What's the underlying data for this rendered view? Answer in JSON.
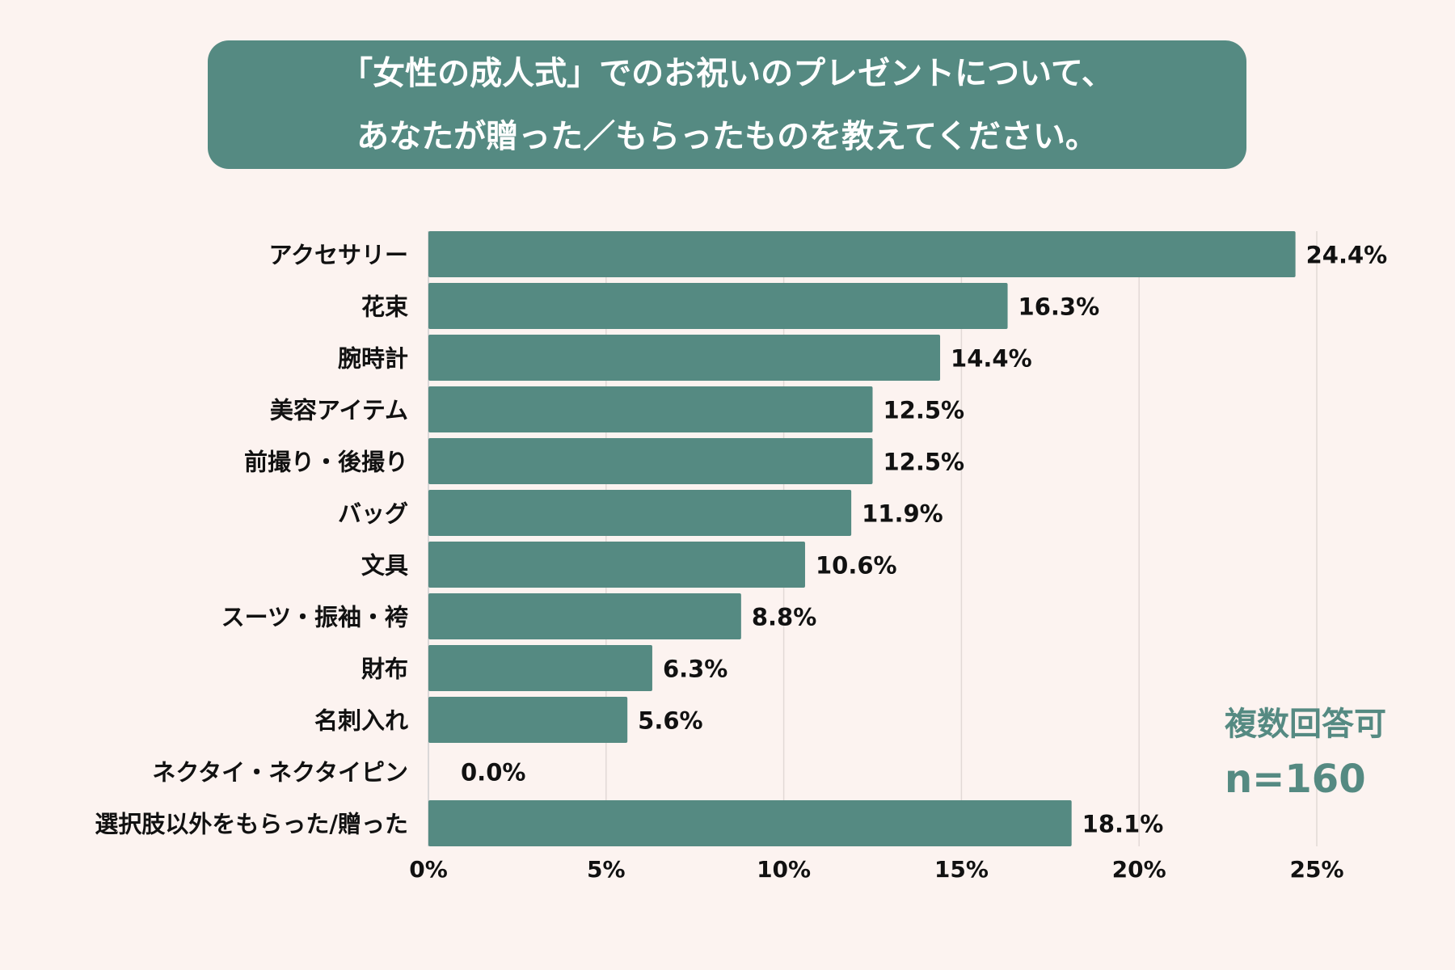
{
  "chart_data": {
    "type": "bar",
    "orientation": "horizontal",
    "title": [
      "「女性の成人式」でのお祝いのプレゼントについて、",
      "あなたが贈った／もらったものを教えてください。"
    ],
    "categories": [
      "アクセサリー",
      "花束",
      "腕時計",
      "美容アイテム",
      "前撮り・後撮り",
      "バッグ",
      "文具",
      "スーツ・振袖・袴",
      "財布",
      "名刺入れ",
      "ネクタイ・ネクタイピン",
      "選択肢以外をもらった/贈った"
    ],
    "values": [
      24.4,
      16.3,
      14.4,
      12.5,
      12.5,
      11.9,
      10.6,
      8.8,
      6.3,
      5.6,
      0.0,
      18.1
    ],
    "value_labels": [
      "24.4%",
      "16.3%",
      "14.4%",
      "12.5%",
      "12.5%",
      "11.9%",
      "10.6%",
      "8.8%",
      "6.3%",
      "5.6%",
      "0.0%",
      "18.1%"
    ],
    "xlim": [
      0,
      25
    ],
    "xticks": [
      "0%",
      "5%",
      "10%",
      "15%",
      "20%",
      "25%"
    ],
    "grid": true,
    "bar_color": "#558a82",
    "background": "#fcf3f0",
    "annotations": [
      "複数回答可",
      "n=160"
    ]
  }
}
